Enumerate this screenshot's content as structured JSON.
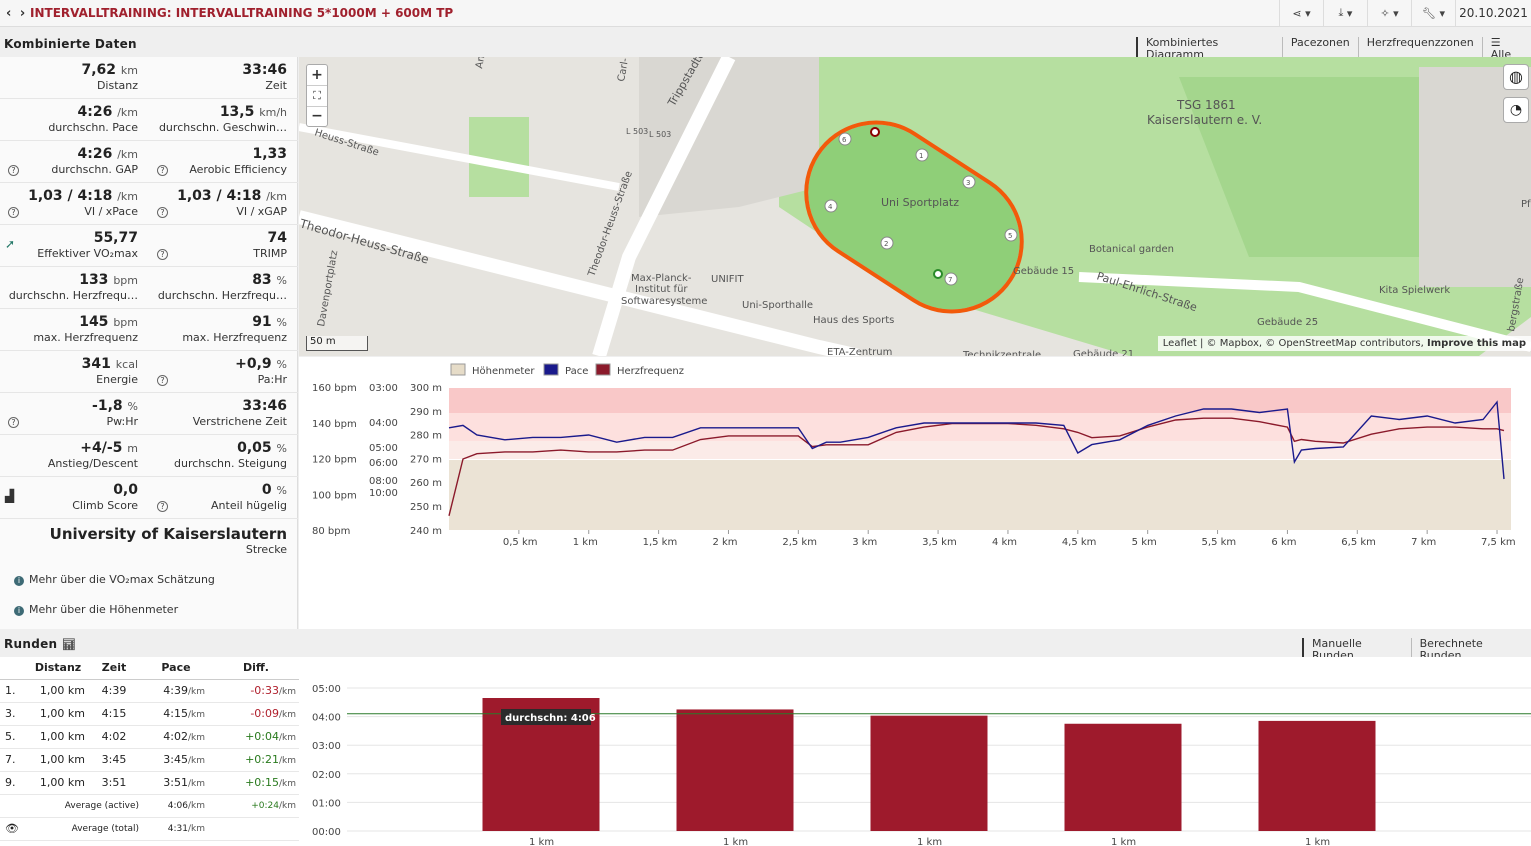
{
  "header": {
    "nav": "‹ ›",
    "title": "INTERVALLTRAINING: INTERVALLTRAINING 5*1000M + 600M TP",
    "date": "20.10.2021"
  },
  "toolbar": {
    "share_icon": "share-icon",
    "download_icon": "download-icon",
    "magic_icon": "magic-icon",
    "wrench_icon": "wrench-icon",
    "dropdown": "▾"
  },
  "combined": {
    "title": "Kombinierte Daten",
    "tabs": [
      "Kombiniertes Diagramm",
      "Pacezonen",
      "Herzfrequenzzonen",
      "☰ Alle"
    ],
    "rows": [
      [
        {
          "value": "7,62",
          "unit": "km",
          "label": "Distanz"
        },
        {
          "value": "33:46",
          "unit": "",
          "label": "Zeit"
        }
      ],
      [
        {
          "value": "4:26",
          "unit": "/km",
          "label": "durchschn. Pace"
        },
        {
          "value": "13,5",
          "unit": "km/h",
          "label": "durchschn. Geschwin…"
        }
      ],
      [
        {
          "value": "4:26",
          "unit": "/km",
          "label": "durchschn. GAP"
        },
        {
          "value": "1,33",
          "unit": "",
          "label": "Aerobic Efficiency"
        }
      ],
      [
        {
          "value": "1,03 / 4:18",
          "unit": "/km",
          "label": "VI / xPace"
        },
        {
          "value": "1,03 / 4:18",
          "unit": "/km",
          "label": "VI / xGAP"
        }
      ],
      [
        {
          "value": "55,77",
          "unit": "",
          "label": "Effektiver VO₂max"
        },
        {
          "value": "74",
          "unit": "",
          "label": "TRIMP"
        }
      ],
      [
        {
          "value": "133",
          "unit": "bpm",
          "label": "durchschn. Herzfrequ…"
        },
        {
          "value": "83",
          "unit": "%",
          "label": "durchschn. Herzfrequ…"
        }
      ],
      [
        {
          "value": "145",
          "unit": "bpm",
          "label": "max. Herzfrequenz"
        },
        {
          "value": "91",
          "unit": "%",
          "label": "max. Herzfrequenz"
        }
      ],
      [
        {
          "value": "341",
          "unit": "kcal",
          "label": "Energie"
        },
        {
          "value": "+0,9",
          "unit": "%",
          "label": "Pa:Hr"
        }
      ],
      [
        {
          "value": "-1,8",
          "unit": "%",
          "label": "Pw:Hr"
        },
        {
          "value": "33:46",
          "unit": "",
          "label": "Verstrichene Zeit"
        }
      ],
      [
        {
          "value": "+4/-5",
          "unit": "m",
          "label": "Anstieg/Descent"
        },
        {
          "value": "0,05",
          "unit": "%",
          "label": "durchschn. Steigung"
        }
      ],
      [
        {
          "value": "0,0",
          "unit": "",
          "label": "Climb Score"
        },
        {
          "value": "0",
          "unit": "%",
          "label": "Anteil hügelig"
        }
      ]
    ],
    "route": {
      "value": "University of Kaiserslautern",
      "label": "Strecke"
    },
    "links": [
      "Mehr über die VO₂max Schätzung",
      "Mehr über die Höhenmeter"
    ]
  },
  "map": {
    "labels": [
      "Trippstadter",
      "L 503",
      "L 503",
      "Theodor-Heuss-Straße",
      "Theodor-Heuss-Straße",
      "Davenportplatz",
      "Heuss-Straße",
      "Carl-",
      "TSG 1861",
      "Kaiserslautern e. V.",
      "Uni Sportplatz",
      "Botanical garden",
      "Gebäude 15",
      "Paul-Ehrlich-Straße",
      "Kita Spielwerk",
      "Gebäude 25",
      "Max-Planck-",
      "Institut für",
      "Softwaresysteme",
      "UNIFIT",
      "Uni-Sporthalle",
      "Haus des Sports",
      "ETA-Zentrum",
      "Technikzentrale",
      "Gebäude 21",
      "bergstraße",
      "Pf",
      "An"
    ],
    "scale": "50 m",
    "attribution": "Leaflet | © Mapbox, © OpenStreetMap contributors,",
    "improve": "Improve this map",
    "zoom_in": "+",
    "zoom_out": "−",
    "fullscreen": "⛶",
    "markers": [
      "1",
      "2",
      "3",
      "4",
      "5",
      "6",
      "7"
    ]
  },
  "chart_data": [
    {
      "type": "line",
      "legend": [
        "Höhenmeter",
        "Pace",
        "Herzfrequenz"
      ],
      "colors": {
        "elevation": "#e6dcc8",
        "pace": "#1a1a8c",
        "hr": "#8b1a2b"
      },
      "x_ticks": [
        "0,5 km",
        "1 km",
        "1,5 km",
        "2 km",
        "2,5 km",
        "3 km",
        "3,5 km",
        "4 km",
        "4,5 km",
        "5 km",
        "5,5 km",
        "6 km",
        "6,5 km",
        "7 km",
        "7,5 km"
      ],
      "hr_ticks": [
        "160 bpm",
        "140 bpm",
        "120 bpm",
        "100 bpm",
        "80 bpm"
      ],
      "pace_ticks": [
        "03:00",
        "04:00",
        "05:00",
        "06:00",
        "08:00",
        "10:00"
      ],
      "elev_ticks": [
        "300 m",
        "290 m",
        "280 m",
        "270 m",
        "260 m",
        "250 m",
        "240 m"
      ],
      "x_km": [
        0,
        0.1,
        0.2,
        0.4,
        0.6,
        0.8,
        1,
        1.2,
        1.4,
        1.6,
        1.8,
        2,
        2.2,
        2.4,
        2.5,
        2.6,
        2.7,
        2.8,
        3,
        3.2,
        3.4,
        3.6,
        3.8,
        4,
        4.2,
        4.4,
        4.5,
        4.6,
        4.8,
        5,
        5.2,
        5.4,
        5.6,
        5.8,
        6,
        6.05,
        6.1,
        6.2,
        6.4,
        6.6,
        6.8,
        7,
        7.2,
        7.4,
        7.5,
        7.55
      ],
      "pace_min_km": [
        4.2,
        4.1,
        4.5,
        4.7,
        4.6,
        4.6,
        4.5,
        4.8,
        4.6,
        4.6,
        4.2,
        4.2,
        4.2,
        4.2,
        4.2,
        5.1,
        4.8,
        4.8,
        4.6,
        4.2,
        4.0,
        4.0,
        4.0,
        4.0,
        4.0,
        4.1,
        5.4,
        4.9,
        4.7,
        4.1,
        3.8,
        3.6,
        3.6,
        3.7,
        3.6,
        6.0,
        5.2,
        5.1,
        5.0,
        3.8,
        3.9,
        3.8,
        4.0,
        3.9,
        3.4,
        8.0
      ],
      "hr_bpm": [
        88,
        120,
        123,
        124,
        124,
        125,
        124,
        124,
        125,
        125,
        131,
        133,
        133,
        133,
        133,
        127,
        128,
        128,
        128,
        135,
        138,
        140,
        140,
        140,
        139,
        137,
        135,
        132,
        133,
        138,
        142,
        143,
        143,
        141,
        138,
        130,
        131,
        130,
        129,
        134,
        137,
        138,
        138,
        137,
        137,
        136
      ],
      "elevation_m": [
        270,
        270,
        270,
        270,
        270,
        270,
        270,
        270,
        270,
        270,
        270,
        270,
        270,
        270,
        270,
        270,
        270,
        270,
        270,
        270,
        270,
        270,
        270,
        270,
        270,
        270,
        270,
        270,
        270,
        270,
        270,
        270,
        270,
        270,
        270,
        270,
        270,
        270,
        270,
        270,
        270,
        270,
        270,
        270,
        270,
        270
      ]
    },
    {
      "type": "bar",
      "categories": [
        "1 km",
        "1 km",
        "1 km",
        "1 km",
        "1 km"
      ],
      "values_min": [
        4.65,
        4.25,
        4.033,
        3.75,
        3.85
      ],
      "y_ticks": [
        "05:00",
        "04:00",
        "03:00",
        "02:00",
        "01:00",
        "00:00"
      ],
      "average_label": "durchschn: 4:06",
      "average_min": 4.1,
      "bar_color": "#9e1a2c"
    }
  ],
  "laps": {
    "title": "Runden",
    "tabs": [
      "Manuelle Runden",
      "Berechnete Runden"
    ],
    "headers": [
      "Distanz",
      "Zeit",
      "Pace",
      "Diff."
    ],
    "rows": [
      {
        "n": "1.",
        "dist": "1,00 km",
        "time": "4:39",
        "pace": "4:39",
        "diff": "-0:33"
      },
      {
        "n": "3.",
        "dist": "1,00 km",
        "time": "4:15",
        "pace": "4:15",
        "diff": "-0:09"
      },
      {
        "n": "5.",
        "dist": "1,00 km",
        "time": "4:02",
        "pace": "4:02",
        "diff": "+0:04"
      },
      {
        "n": "7.",
        "dist": "1,00 km",
        "time": "3:45",
        "pace": "3:45",
        "diff": "+0:21"
      },
      {
        "n": "9.",
        "dist": "1,00 km",
        "time": "3:51",
        "pace": "3:51",
        "diff": "+0:15"
      }
    ],
    "unit": "/km",
    "avg_active": {
      "label": "Average (active)",
      "pace": "4:06",
      "diff": "+0:24"
    },
    "avg_total": {
      "label": "Average (total)",
      "pace": "4:31"
    }
  }
}
